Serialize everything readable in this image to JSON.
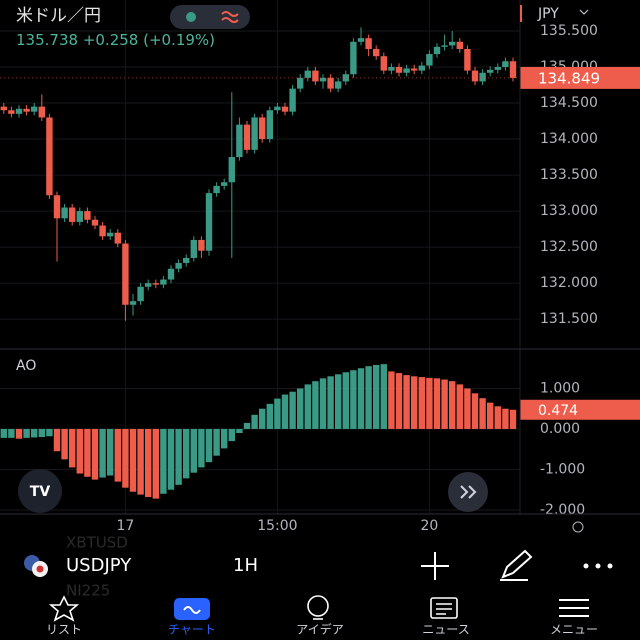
{
  "header": {
    "symbol_name": "米ドル／円",
    "price": "135.738",
    "change": "+0.258",
    "change_pct": "(+0.19%)",
    "currency": "JPY"
  },
  "chart_data": [
    {
      "type": "candlestick",
      "up_color": "#3a9a85",
      "down_color": "#ee5d4b",
      "grid": true,
      "categories": [
        null,
        null,
        null,
        null,
        null,
        null,
        null,
        null,
        null,
        null,
        null,
        null,
        null,
        null,
        null,
        null,
        "17",
        null,
        null,
        null,
        null,
        null,
        null,
        null,
        null,
        null,
        null,
        null,
        null,
        null,
        null,
        null,
        null,
        null,
        null,
        null,
        "15:00",
        null,
        null,
        null,
        null,
        null,
        null,
        null,
        null,
        null,
        null,
        null,
        null,
        null,
        null,
        null,
        null,
        null,
        null,
        null,
        "20",
        null,
        null,
        null,
        null,
        null,
        null,
        null,
        null,
        null,
        null,
        null
      ],
      "open": [
        134.45,
        134.4,
        134.35,
        134.42,
        134.38,
        134.45,
        134.3,
        133.22,
        132.9,
        133.05,
        132.85,
        133.0,
        132.88,
        132.8,
        132.65,
        132.7,
        132.55,
        131.7,
        131.75,
        131.95,
        132.0,
        131.98,
        132.05,
        132.2,
        132.28,
        132.35,
        132.6,
        132.45,
        133.25,
        133.35,
        133.4,
        133.75,
        134.2,
        133.85,
        134.3,
        134.0,
        134.4,
        134.45,
        134.38,
        134.7,
        134.85,
        134.95,
        134.8,
        134.85,
        134.7,
        134.8,
        134.9,
        135.35,
        135.4,
        135.25,
        135.15,
        134.95,
        135.0,
        134.92,
        134.98,
        134.95,
        135.02,
        135.18,
        135.28,
        135.3,
        135.35,
        135.25,
        134.95,
        134.8,
        134.92,
        134.96,
        135.0,
        135.08
      ],
      "high": [
        134.5,
        134.45,
        134.47,
        134.47,
        134.5,
        134.62,
        134.35,
        133.27,
        133.1,
        133.1,
        133.05,
        133.05,
        132.93,
        132.85,
        132.75,
        132.75,
        132.6,
        131.85,
        132.0,
        132.05,
        132.05,
        132.1,
        132.25,
        132.33,
        132.4,
        132.65,
        132.65,
        133.3,
        133.4,
        133.45,
        134.65,
        134.3,
        134.25,
        134.35,
        134.35,
        134.45,
        134.5,
        134.5,
        134.75,
        134.9,
        135.0,
        135.0,
        134.9,
        134.9,
        134.85,
        134.95,
        135.4,
        135.55,
        135.45,
        135.3,
        135.2,
        135.05,
        135.05,
        135.03,
        135.03,
        135.07,
        135.23,
        135.33,
        135.45,
        135.5,
        135.4,
        135.3,
        135.0,
        134.97,
        135.01,
        135.05,
        135.13,
        135.13
      ],
      "low": [
        134.35,
        134.3,
        134.3,
        134.33,
        134.33,
        134.25,
        133.17,
        132.3,
        132.85,
        132.8,
        132.8,
        132.83,
        132.75,
        132.6,
        132.6,
        132.5,
        131.48,
        131.55,
        131.7,
        131.9,
        131.93,
        131.93,
        132.0,
        132.15,
        132.23,
        132.3,
        132.35,
        132.38,
        133.2,
        133.3,
        132.35,
        133.7,
        133.8,
        133.8,
        133.95,
        133.95,
        134.35,
        134.33,
        134.33,
        134.65,
        134.8,
        134.75,
        134.7,
        134.65,
        134.65,
        134.75,
        134.85,
        135.3,
        135.15,
        135.1,
        134.9,
        134.9,
        134.87,
        134.87,
        134.9,
        134.9,
        134.97,
        135.13,
        135.23,
        135.25,
        135.2,
        134.9,
        134.75,
        134.75,
        134.87,
        134.91,
        134.95,
        134.8
      ],
      "close": [
        134.4,
        134.35,
        134.42,
        134.38,
        134.45,
        134.3,
        133.22,
        132.9,
        133.05,
        132.85,
        133.0,
        132.88,
        132.8,
        132.65,
        132.7,
        132.55,
        131.7,
        131.75,
        131.95,
        132.0,
        131.98,
        132.05,
        132.2,
        132.28,
        132.35,
        132.6,
        132.45,
        133.25,
        133.35,
        133.4,
        133.75,
        134.2,
        133.85,
        134.3,
        134.0,
        134.4,
        134.45,
        134.38,
        134.7,
        134.85,
        134.95,
        134.8,
        134.85,
        134.7,
        134.8,
        134.9,
        135.35,
        135.4,
        135.25,
        135.15,
        134.95,
        135.0,
        134.92,
        134.98,
        134.95,
        135.02,
        135.18,
        135.28,
        135.3,
        135.35,
        135.25,
        134.95,
        134.8,
        134.92,
        134.96,
        135.0,
        135.08,
        134.849
      ],
      "ylim": [
        131.1,
        135.93
      ],
      "yticks": [
        {
          "value": 131.5,
          "label": "131.500"
        },
        {
          "value": 132,
          "label": "132.000"
        },
        {
          "value": 132.5,
          "label": "132.500"
        },
        {
          "value": 133,
          "label": "133.000"
        },
        {
          "value": 133.5,
          "label": "133.500"
        },
        {
          "value": 134,
          "label": "134.000"
        },
        {
          "value": 134.5,
          "label": "134.500"
        },
        {
          "value": 135,
          "label": "135.000"
        },
        {
          "value": 135.5,
          "label": "135.500"
        }
      ]
    },
    {
      "type": "bar",
      "title": "AO",
      "up_color": "#3a9a85",
      "down_color": "#ee5d4b",
      "values": [
        -0.22,
        -0.22,
        -0.24,
        -0.22,
        -0.21,
        -0.2,
        -0.18,
        -0.55,
        -0.75,
        -0.95,
        -1.1,
        -1.18,
        -1.25,
        -1.2,
        -1.15,
        -1.3,
        -1.45,
        -1.55,
        -1.62,
        -1.68,
        -1.72,
        -1.6,
        -1.5,
        -1.38,
        -1.22,
        -1.08,
        -0.95,
        -0.82,
        -0.66,
        -0.48,
        -0.3,
        -0.1,
        0.15,
        0.35,
        0.5,
        0.62,
        0.75,
        0.85,
        0.92,
        1.0,
        1.1,
        1.18,
        1.25,
        1.3,
        1.35,
        1.4,
        1.45,
        1.5,
        1.55,
        1.58,
        1.6,
        1.42,
        1.38,
        1.33,
        1.3,
        1.28,
        1.26,
        1.25,
        1.22,
        1.18,
        1.1,
        1.0,
        0.88,
        0.76,
        0.65,
        0.56,
        0.5,
        0.474
      ],
      "ylim": [
        -2.05,
        1.9
      ],
      "yticks": [
        {
          "value": -2,
          "label": "-2.000"
        },
        {
          "value": -1,
          "label": "-1.000"
        },
        {
          "value": 0,
          "label": "0.000"
        },
        {
          "value": 1,
          "label": "1.000"
        }
      ]
    }
  ],
  "toolbar": {
    "symbol": "USDJPY",
    "interval": "1H",
    "prev_symbol": "XBTUSD",
    "next_symbol": "NI225"
  },
  "tabs": [
    "リスト",
    "チャート",
    "アイデア",
    "ニュース",
    "メニュー"
  ]
}
